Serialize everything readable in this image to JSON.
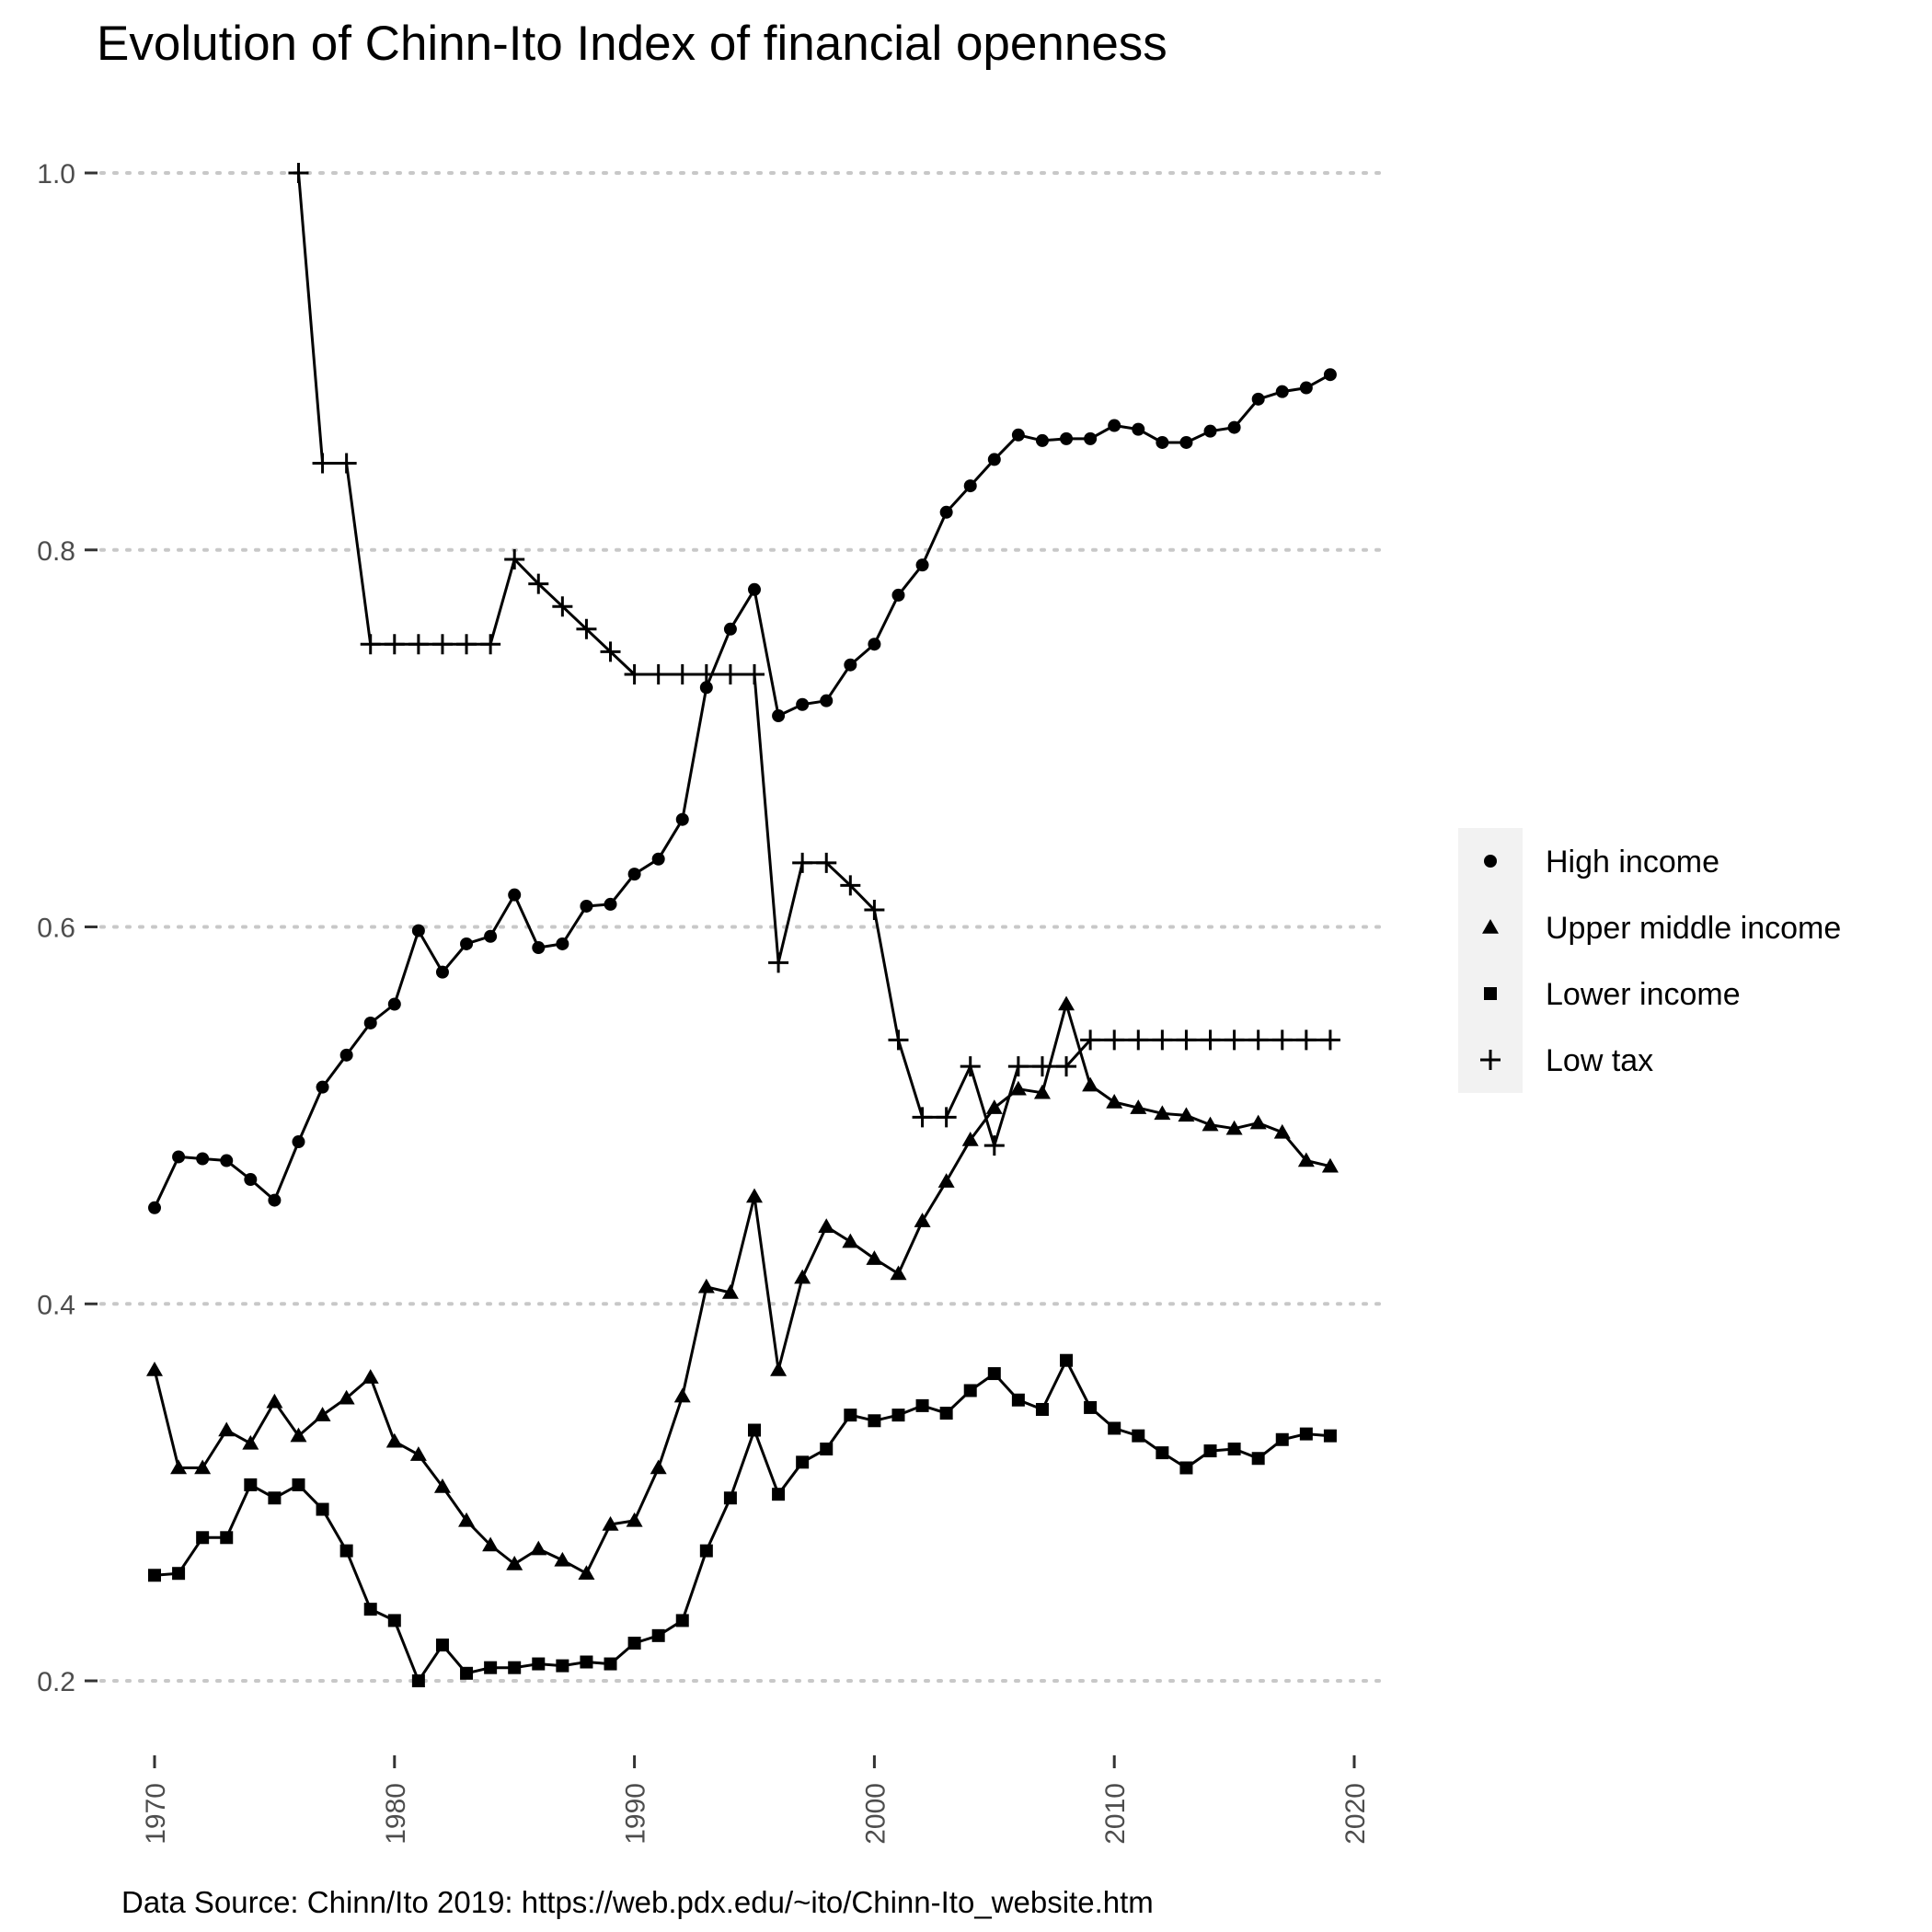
{
  "chart_data": {
    "type": "line",
    "title": "Evolution of Chinn-Ito Index of financial openness",
    "caption": "Data Source: Chinn/Ito 2019:  https://web.pdx.edu/~ito/Chinn-Ito_website.htm",
    "xlabel": "",
    "ylabel": "",
    "xlim": [
      1969,
      2020
    ],
    "ylim": [
      0.17,
      1.04
    ],
    "x_ticks": [
      1970,
      1980,
      1990,
      2000,
      2010,
      2020
    ],
    "y_ticks": [
      0.2,
      0.4,
      0.6,
      0.8,
      1.0
    ],
    "y_tick_labels": [
      "0.2",
      "0.4",
      "0.6",
      "0.8",
      "1.0"
    ],
    "grid": "horizontal major, dotted",
    "legend_position": "right",
    "series": [
      {
        "name": "High income",
        "marker": "circle",
        "x": [
          1970,
          1971,
          1972,
          1973,
          1974,
          1975,
          1976,
          1977,
          1978,
          1979,
          1980,
          1981,
          1982,
          1983,
          1984,
          1985,
          1986,
          1987,
          1988,
          1989,
          1990,
          1991,
          1992,
          1993,
          1994,
          1995,
          1996,
          1997,
          1998,
          1999,
          2000,
          2001,
          2002,
          2003,
          2004,
          2005,
          2006,
          2007,
          2008,
          2009,
          2010,
          2011,
          2012,
          2013,
          2014,
          2015,
          2016,
          2017,
          2018,
          2019
        ],
        "values": [
          0.451,
          0.478,
          0.477,
          0.476,
          0.466,
          0.455,
          0.486,
          0.515,
          0.532,
          0.549,
          0.559,
          0.598,
          0.576,
          0.591,
          0.595,
          0.617,
          0.589,
          0.591,
          0.611,
          0.612,
          0.628,
          0.636,
          0.657,
          0.727,
          0.758,
          0.779,
          0.712,
          0.718,
          0.72,
          0.739,
          0.75,
          0.776,
          0.792,
          0.82,
          0.834,
          0.848,
          0.861,
          0.858,
          0.859,
          0.859,
          0.866,
          0.864,
          0.857,
          0.857,
          0.863,
          0.865,
          0.88,
          0.884,
          0.886,
          0.893
        ]
      },
      {
        "name": "Upper middle income",
        "marker": "triangle",
        "x": [
          1970,
          1971,
          1972,
          1973,
          1974,
          1975,
          1976,
          1977,
          1978,
          1979,
          1980,
          1981,
          1982,
          1983,
          1984,
          1985,
          1986,
          1987,
          1988,
          1989,
          1990,
          1991,
          1992,
          1993,
          1994,
          1995,
          1996,
          1997,
          1998,
          1999,
          2000,
          2001,
          2002,
          2003,
          2004,
          2005,
          2006,
          2007,
          2008,
          2009,
          2010,
          2011,
          2012,
          2013,
          2014,
          2015,
          2016,
          2017,
          2018,
          2019
        ],
        "values": [
          0.365,
          0.313,
          0.313,
          0.333,
          0.326,
          0.348,
          0.33,
          0.341,
          0.35,
          0.361,
          0.327,
          0.32,
          0.303,
          0.285,
          0.272,
          0.262,
          0.27,
          0.264,
          0.257,
          0.283,
          0.285,
          0.313,
          0.351,
          0.409,
          0.406,
          0.457,
          0.365,
          0.414,
          0.441,
          0.433,
          0.424,
          0.416,
          0.444,
          0.465,
          0.487,
          0.504,
          0.514,
          0.512,
          0.559,
          0.516,
          0.507,
          0.504,
          0.501,
          0.5,
          0.495,
          0.493,
          0.496,
          0.491,
          0.476,
          0.473
        ]
      },
      {
        "name": "Lower income",
        "marker": "square",
        "x": [
          1970,
          1971,
          1972,
          1973,
          1974,
          1975,
          1976,
          1977,
          1978,
          1979,
          1980,
          1981,
          1982,
          1983,
          1984,
          1985,
          1986,
          1987,
          1988,
          1989,
          1990,
          1991,
          1992,
          1993,
          1994,
          1995,
          1996,
          1997,
          1998,
          1999,
          2000,
          2001,
          2002,
          2003,
          2004,
          2005,
          2006,
          2007,
          2008,
          2009,
          2010,
          2011,
          2012,
          2013,
          2014,
          2015,
          2016,
          2017,
          2018,
          2019
        ],
        "values": [
          0.256,
          0.257,
          0.276,
          0.276,
          0.304,
          0.297,
          0.304,
          0.291,
          0.269,
          0.238,
          0.232,
          0.2,
          0.219,
          0.204,
          0.207,
          0.207,
          0.209,
          0.208,
          0.21,
          0.209,
          0.22,
          0.224,
          0.232,
          0.269,
          0.297,
          0.333,
          0.299,
          0.316,
          0.323,
          0.341,
          0.338,
          0.341,
          0.346,
          0.342,
          0.354,
          0.363,
          0.349,
          0.344,
          0.37,
          0.345,
          0.334,
          0.33,
          0.321,
          0.313,
          0.322,
          0.323,
          0.318,
          0.328,
          0.331,
          0.33
        ]
      },
      {
        "name": "Low tax",
        "marker": "plus",
        "x": [
          1976,
          1977,
          1978,
          1979,
          1980,
          1981,
          1982,
          1983,
          1984,
          1985,
          1986,
          1987,
          1988,
          1989,
          1990,
          1991,
          1992,
          1993,
          1994,
          1995,
          1996,
          1997,
          1998,
          1999,
          2000,
          2001,
          2002,
          2003,
          2004,
          2005,
          2006,
          2007,
          2008,
          2009,
          2010,
          2011,
          2012,
          2013,
          2014,
          2015,
          2016,
          2017,
          2018,
          2019
        ],
        "values": [
          1.0,
          0.846,
          0.846,
          0.75,
          0.75,
          0.75,
          0.75,
          0.75,
          0.75,
          0.795,
          0.782,
          0.77,
          0.758,
          0.746,
          0.734,
          0.734,
          0.734,
          0.734,
          0.734,
          0.734,
          0.581,
          0.634,
          0.634,
          0.622,
          0.609,
          0.54,
          0.499,
          0.499,
          0.526,
          0.484,
          0.526,
          0.526,
          0.526,
          0.54,
          0.54,
          0.54,
          0.54,
          0.54,
          0.54,
          0.54,
          0.54,
          0.54,
          0.54,
          0.54
        ]
      }
    ]
  }
}
